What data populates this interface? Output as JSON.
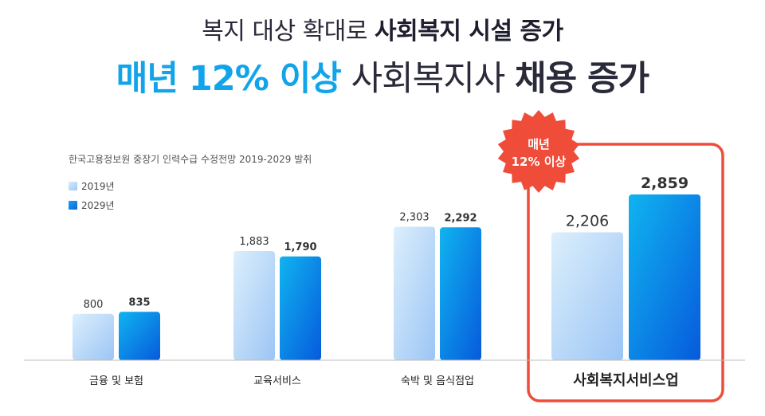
{
  "headline": {
    "line1_normal": "복지 대상 확대로 ",
    "line1_bold": "사회복지 시설 증가",
    "line2_accent": "매년 12% 이상",
    "line2_normal": " 사회복지사 ",
    "line2_bold": "채용 증가"
  },
  "source_note": "한국고용정보원 중장기 인력수급 수정전망 2019-2029 발취",
  "badge": {
    "line1": "매년",
    "line2": "12% 이상"
  },
  "colors": {
    "accent": "#11a4ea",
    "highlight_border": "#ef4c3a",
    "badge": "#ef4c3a",
    "series_2019": "#b6d8f7",
    "series_2029": "#0a7fe6"
  },
  "chart_data": {
    "type": "bar",
    "categories": [
      "금융 및 보험",
      "교육서비스",
      "숙박 및 음식점업",
      "사회복지서비스업"
    ],
    "series": [
      {
        "name": "2019년",
        "values": [
          800,
          1883,
          2303,
          2206
        ],
        "labels": [
          "800",
          "1,883",
          "2,303",
          "2,206"
        ]
      },
      {
        "name": "2029년",
        "values": [
          835,
          1790,
          2292,
          2859
        ],
        "labels": [
          "835",
          "1,790",
          "2,292",
          "2,859"
        ]
      }
    ],
    "legend": "top-left",
    "grid": false,
    "highlight_category": "사회복지서비스업"
  }
}
